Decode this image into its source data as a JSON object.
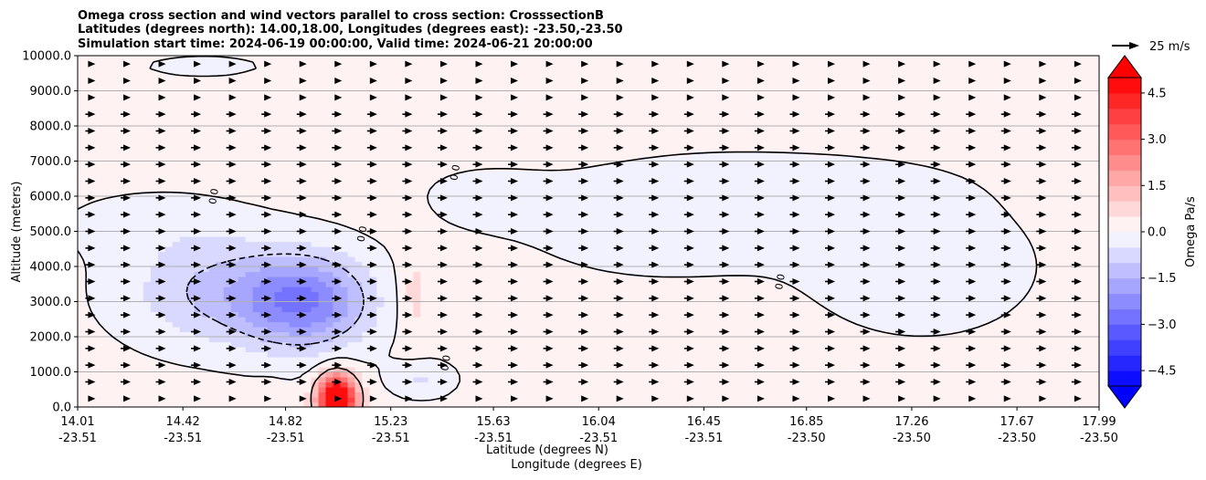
{
  "chart_data": {
    "type": "contour",
    "title_lines": [
      "Omega cross section and wind vectors parallel to cross section: CrosssectionB",
      "Latitudes (degrees north): 14.00,18.00, Longitudes (degrees east): -23.50,-23.50",
      "Simulation start time: 2024-06-19 00:00:00, Valid time: 2024-06-21 20:00:00"
    ],
    "xlabel_line1": "Latitude (degrees N)",
    "xlabel_line2": "Longitude (degrees E)",
    "ylabel": "Altitude (meters)",
    "x_range": [
      14.01,
      17.99
    ],
    "ylim": [
      0,
      10000
    ],
    "y_ticks": [
      "0.0",
      "1000.0",
      "2000.0",
      "3000.0",
      "4000.0",
      "5000.0",
      "6000.0",
      "7000.0",
      "8000.0",
      "9000.0",
      "10000.0"
    ],
    "x_ticks": [
      {
        "lat": "14.01",
        "lon": "-23.51"
      },
      {
        "lat": "14.42",
        "lon": "-23.51"
      },
      {
        "lat": "14.82",
        "lon": "-23.51"
      },
      {
        "lat": "15.23",
        "lon": "-23.51"
      },
      {
        "lat": "15.63",
        "lon": "-23.51"
      },
      {
        "lat": "16.04",
        "lon": "-23.51"
      },
      {
        "lat": "16.45",
        "lon": "-23.51"
      },
      {
        "lat": "16.85",
        "lon": "-23.50"
      },
      {
        "lat": "17.26",
        "lon": "-23.50"
      },
      {
        "lat": "17.67",
        "lon": "-23.50"
      },
      {
        "lat": "17.99",
        "lon": "-23.50"
      }
    ],
    "grid": "horizontal",
    "colorbar": {
      "label": "Omega Pa/s",
      "range": [
        -5.0,
        5.0
      ],
      "ticks": [
        "-4.5",
        "-3.0",
        "-1.5",
        "0.0",
        "1.5",
        "3.0",
        "4.5"
      ],
      "extend": "both",
      "colormap": "bwr"
    },
    "quiver_key": {
      "label": "25 m/s"
    },
    "contour_label": "0.0",
    "contour_levels_shown": [
      -1.0,
      0.0,
      1.0
    ],
    "features": [
      {
        "name": "descending-core",
        "x": 14.9,
        "y": 3000,
        "omega": -2.4
      },
      {
        "name": "ascending-core",
        "x": 15.02,
        "y": 300,
        "omega": 4.5
      },
      {
        "name": "weak-ascent-upper",
        "x": 15.8,
        "y": 8000,
        "omega": 0.2
      },
      {
        "name": "weak-ascent-lobe",
        "x": 15.3,
        "y": 3200,
        "omega": 0.5
      }
    ],
    "wind": "westerly vectors, roughly uniform magnitude, weakening near surface"
  },
  "colors": {
    "positive_max": "#ff0000",
    "negative_max": "#0000ff",
    "neutral": "#ffffff",
    "contour_line": "#000000",
    "grid": "#b0b0b0"
  }
}
